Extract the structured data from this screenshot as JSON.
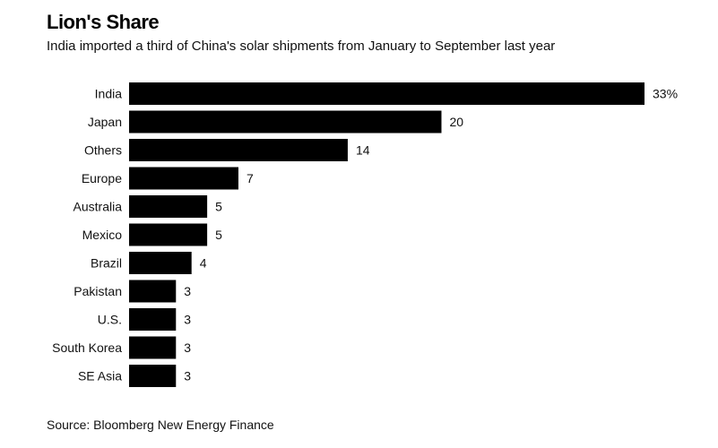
{
  "title": "Lion's Share",
  "subtitle": "India imported a third of China's solar shipments from January to September last year",
  "source": "Source: Bloomberg New Energy Finance",
  "colors": {
    "bar": "#000000",
    "text": "#111111",
    "background": "#ffffff"
  },
  "chart_data": {
    "type": "bar",
    "orientation": "horizontal",
    "categories": [
      "India",
      "Japan",
      "Others",
      "Europe",
      "Australia",
      "Mexico",
      "Brazil",
      "Pakistan",
      "U.S.",
      "South Korea",
      "SE Asia"
    ],
    "values": [
      33,
      20,
      14,
      7,
      5,
      5,
      4,
      3,
      3,
      3,
      3
    ],
    "value_labels": [
      "33%",
      "20",
      "14",
      "7",
      "5",
      "5",
      "4",
      "3",
      "3",
      "3",
      "3"
    ],
    "xlim": [
      0,
      33
    ],
    "grid": false,
    "legend": "none"
  }
}
